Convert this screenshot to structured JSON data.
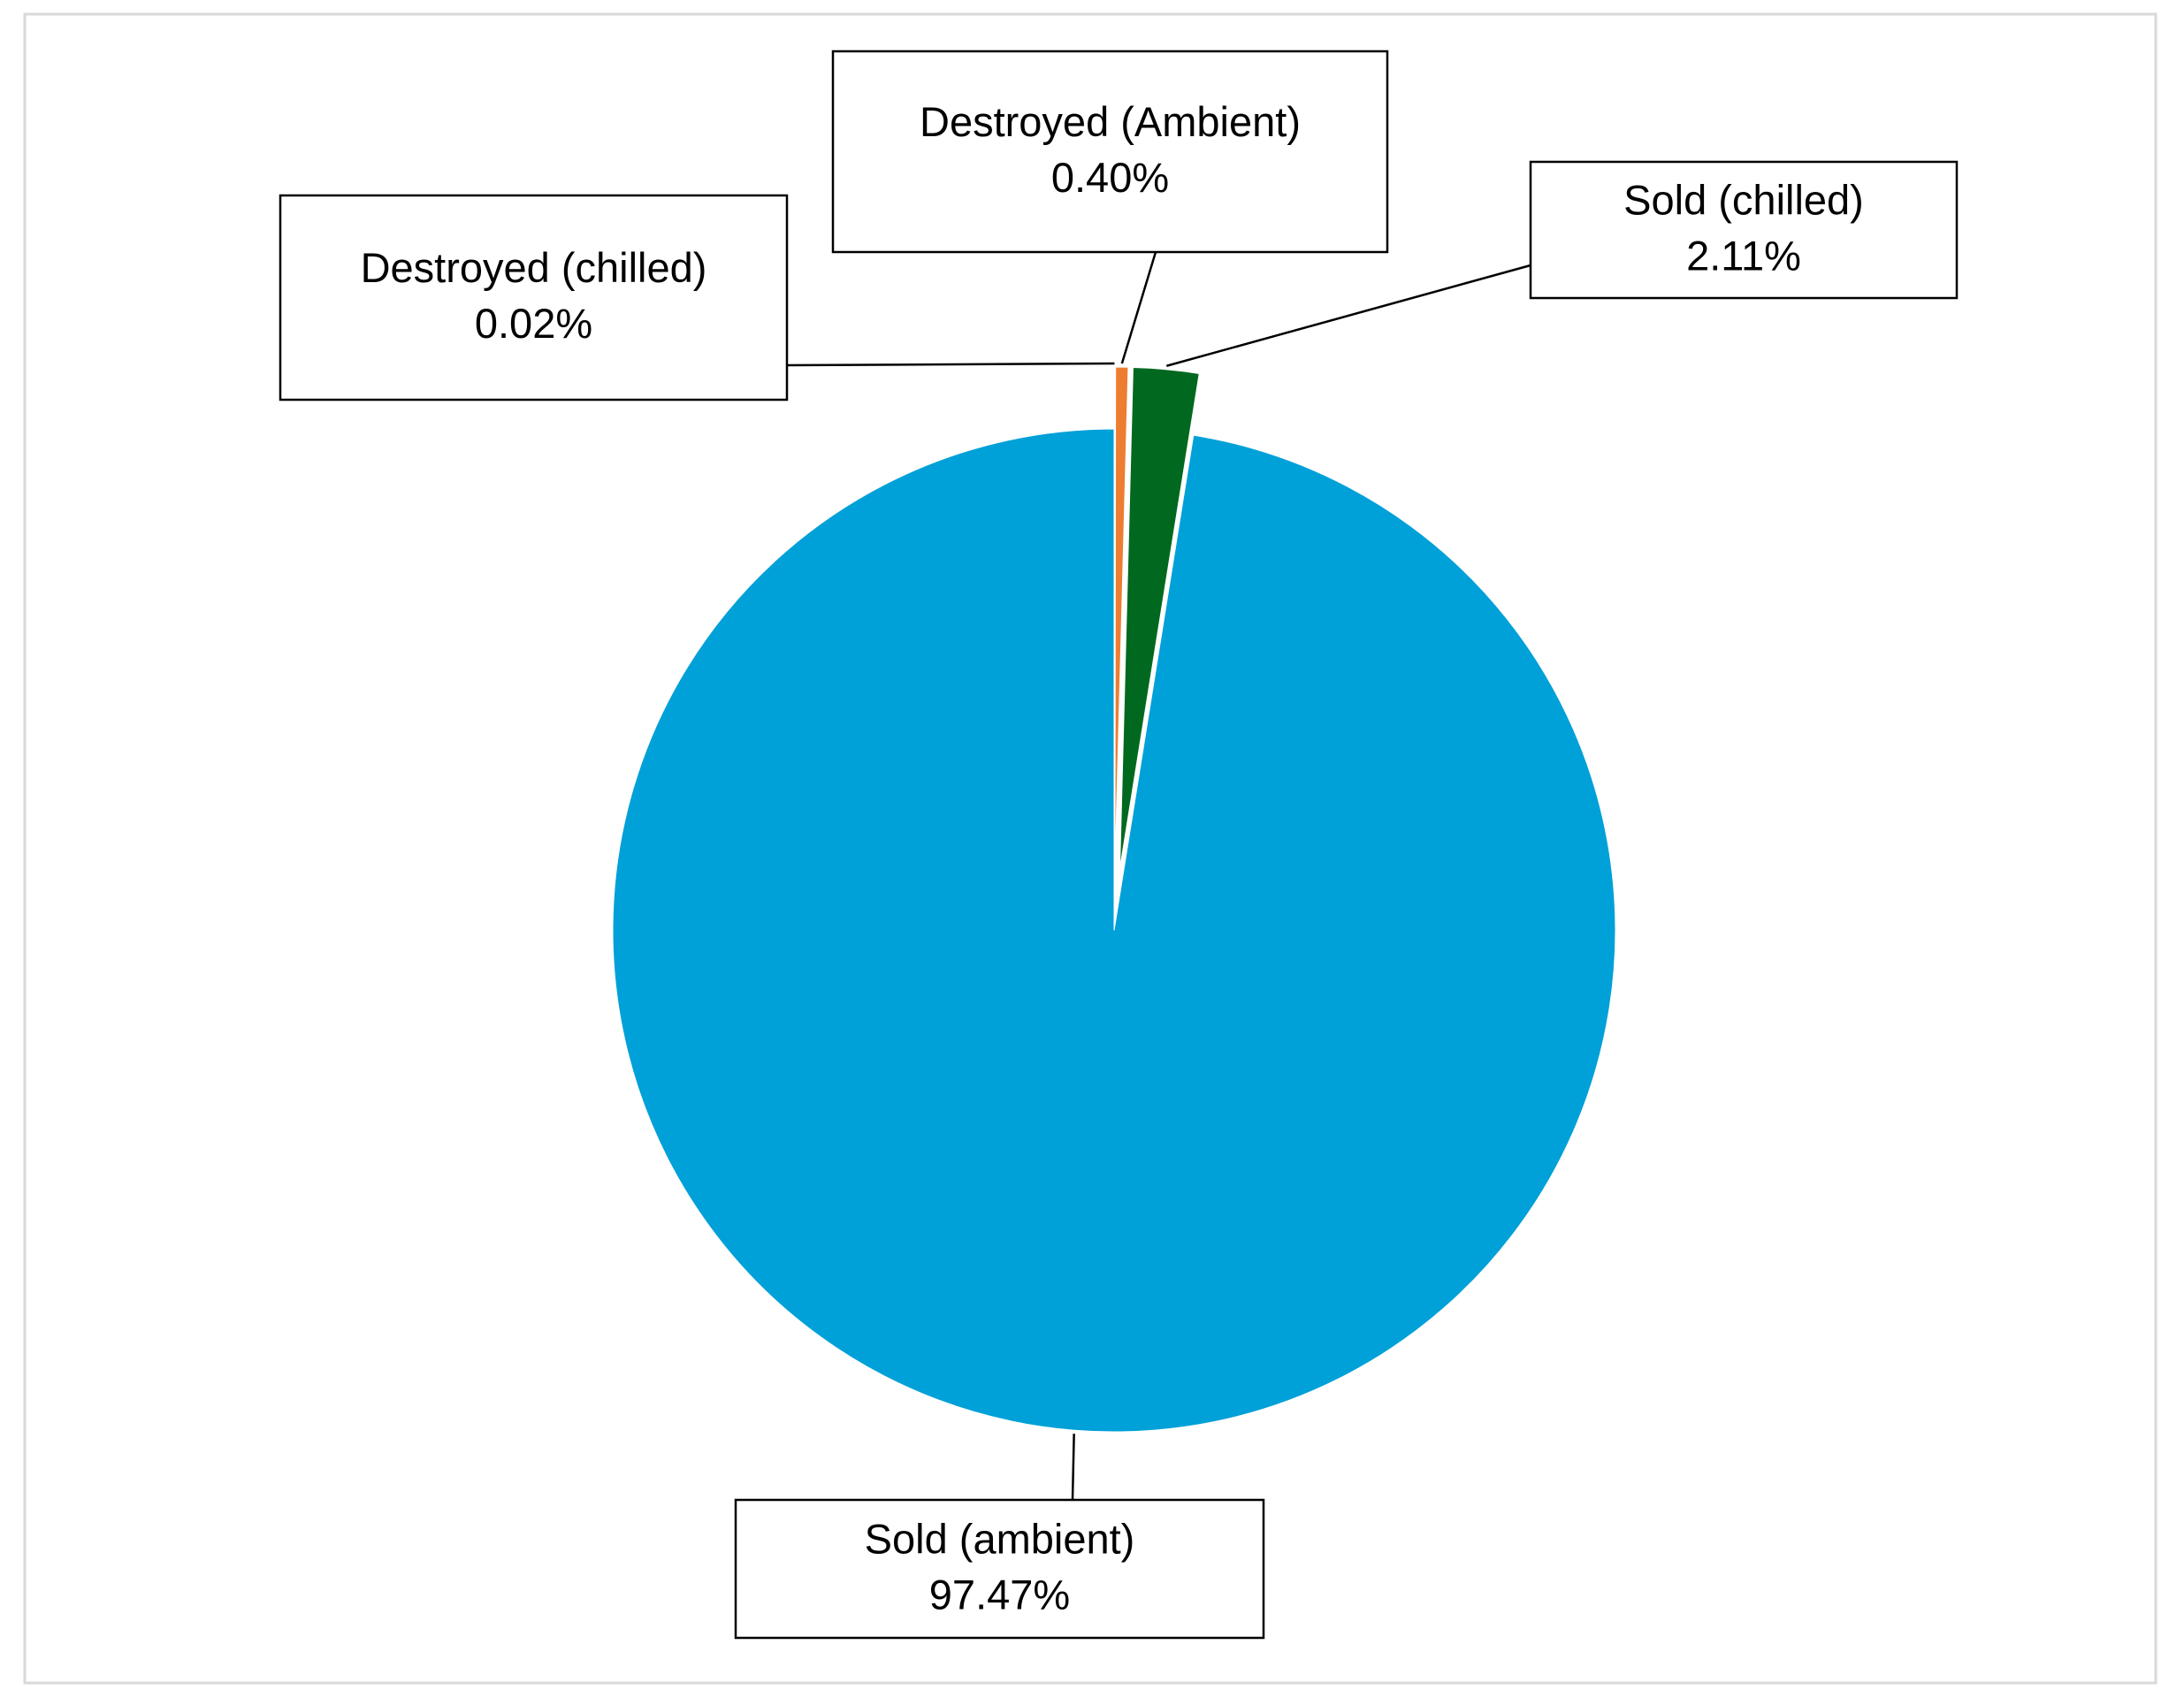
{
  "chart_data": {
    "type": "pie",
    "categories": [
      "Destroyed (chilled)",
      "Destroyed (Ambient)",
      "Sold (chilled)",
      "Sold (ambient)"
    ],
    "values": [
      0.02,
      0.4,
      2.11,
      97.47
    ],
    "value_labels": [
      "0.02%",
      "0.40%",
      "2.11%",
      "97.47%"
    ],
    "colors": [
      "#f4b183",
      "#ed7d31",
      "#00691f",
      "#00a0d8"
    ]
  }
}
